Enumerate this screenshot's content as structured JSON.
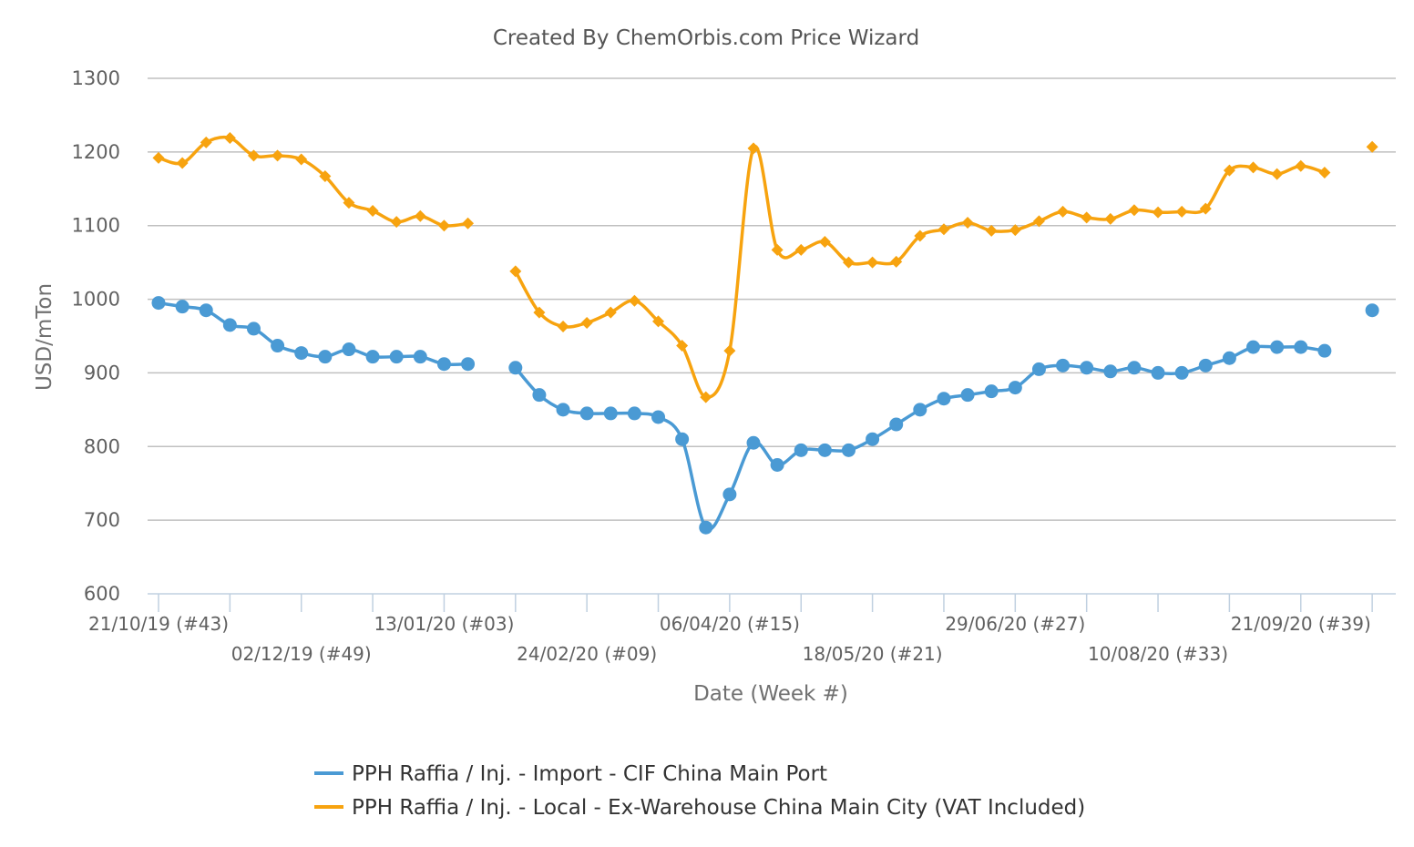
{
  "chart_data": {
    "type": "line",
    "title": "Created By ChemOrbis.com Price Wizard",
    "xlabel": "Date (Week #)",
    "ylabel": "USD/mTon",
    "ylim": [
      600,
      1300
    ],
    "yticks": [
      600,
      700,
      800,
      900,
      1000,
      1100,
      1200,
      1300
    ],
    "grid": true,
    "legend_position": "bottom",
    "x_tick_labels": [
      {
        "label": "21/10/19 (#43)",
        "index": 0,
        "row": 1
      },
      {
        "label": "02/12/19 (#49)",
        "index": 6,
        "row": 2
      },
      {
        "label": "13/01/20 (#03)",
        "index": 12,
        "row": 1
      },
      {
        "label": "24/02/20 (#09)",
        "index": 18,
        "row": 2
      },
      {
        "label": "06/04/20 (#15)",
        "index": 24,
        "row": 1
      },
      {
        "label": "18/05/20 (#21)",
        "index": 30,
        "row": 2
      },
      {
        "label": "29/06/20 (#27)",
        "index": 36,
        "row": 1
      },
      {
        "label": "10/08/20 (#33)",
        "index": 42,
        "row": 2
      },
      {
        "label": "21/09/20 (#39)",
        "index": 48,
        "row": 1
      }
    ],
    "x_tick_marks": [
      0,
      3,
      6,
      9,
      12,
      15,
      18,
      21,
      24,
      27,
      30,
      33,
      36,
      39,
      42,
      45,
      48,
      51
    ],
    "categories": [
      "21/10/19",
      "28/10/19",
      "04/11/19",
      "11/11/19",
      "18/11/19",
      "25/11/19",
      "02/12/19",
      "09/12/19",
      "16/12/19",
      "23/12/19",
      "30/12/19",
      "06/01/20",
      "13/01/20",
      "20/01/20",
      "27/01/20",
      "03/02/20",
      "10/02/20",
      "17/02/20",
      "24/02/20",
      "02/03/20",
      "09/03/20",
      "16/03/20",
      "23/03/20",
      "30/03/20",
      "06/04/20",
      "13/04/20",
      "20/04/20",
      "27/04/20",
      "04/05/20",
      "11/05/20",
      "18/05/20",
      "25/05/20",
      "01/06/20",
      "08/06/20",
      "15/06/20",
      "22/06/20",
      "29/06/20",
      "06/07/20",
      "13/07/20",
      "20/07/20",
      "27/07/20",
      "03/08/20",
      "10/08/20",
      "17/08/20",
      "24/08/20",
      "31/08/20",
      "07/09/20",
      "14/09/20",
      "21/09/20",
      "28/09/20",
      "05/10/20",
      "12/10/20"
    ],
    "series": [
      {
        "name": "PPH Raffia / Inj. - Import - CIF China Main Port",
        "color": "#4a9ad4",
        "marker": "circle",
        "values": [
          995,
          990,
          985,
          965,
          960,
          937,
          927,
          922,
          932,
          922,
          922,
          922,
          912,
          912,
          null,
          907,
          870,
          850,
          845,
          845,
          845,
          840,
          810,
          690,
          735,
          805,
          775,
          795,
          795,
          795,
          810,
          830,
          850,
          865,
          870,
          875,
          880,
          905,
          910,
          907,
          902,
          907,
          900,
          900,
          910,
          920,
          935,
          935,
          935,
          930,
          null,
          985
        ]
      },
      {
        "name": "PPH Raffia / Inj. - Local - Ex-Warehouse China Main City (VAT Included)",
        "color": "#f7a30f",
        "marker": "diamond",
        "values": [
          1192,
          1185,
          1213,
          1219,
          1195,
          1195,
          1190,
          1167,
          1131,
          1120,
          1105,
          1113,
          1100,
          1103,
          null,
          1038,
          982,
          963,
          968,
          982,
          998,
          970,
          937,
          867,
          930,
          1205,
          1067,
          1067,
          1078,
          1050,
          1050,
          1051,
          1086,
          1095,
          1104,
          1093,
          1094,
          1106,
          1119,
          1111,
          1109,
          1121,
          1118,
          1119,
          1123,
          1175,
          1179,
          1170,
          1181,
          1172,
          null,
          1207
        ]
      }
    ]
  }
}
